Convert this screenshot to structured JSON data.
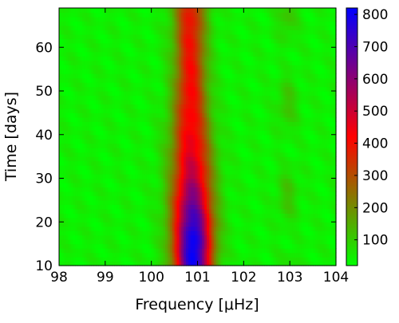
{
  "chart_data": {
    "type": "heatmap",
    "title": "",
    "xlabel": "Frequency [μHz]",
    "ylabel": "Time [days]",
    "xlim": [
      98,
      104
    ],
    "ylim": [
      10,
      69
    ],
    "x_ticks": [
      {
        "value": 98,
        "label": "98"
      },
      {
        "value": 99,
        "label": "99"
      },
      {
        "value": 100,
        "label": "100"
      },
      {
        "value": 101,
        "label": "101"
      },
      {
        "value": 102,
        "label": "102"
      },
      {
        "value": 103,
        "label": "103"
      },
      {
        "value": 104,
        "label": "104"
      }
    ],
    "y_ticks": [
      {
        "value": 10,
        "label": "10"
      },
      {
        "value": 20,
        "label": "20"
      },
      {
        "value": 30,
        "label": "30"
      },
      {
        "value": 40,
        "label": "40"
      },
      {
        "value": 50,
        "label": "50"
      },
      {
        "value": 60,
        "label": "60"
      }
    ],
    "colorbar": {
      "min": 20,
      "max": 820,
      "ticks": [
        {
          "value": 100,
          "label": "100"
        },
        {
          "value": 200,
          "label": "200"
        },
        {
          "value": 300,
          "label": "300"
        },
        {
          "value": 400,
          "label": "400"
        },
        {
          "value": 500,
          "label": "500"
        },
        {
          "value": 600,
          "label": "600"
        },
        {
          "value": 700,
          "label": "700"
        },
        {
          "value": 800,
          "label": "800"
        }
      ],
      "colors": [
        "#00ff00",
        "#ff0000",
        "#0000ff"
      ]
    },
    "ridge": {
      "times": [
        10,
        15,
        20,
        25,
        30,
        35,
        40,
        45,
        50,
        55,
        60,
        65,
        69
      ],
      "center": [
        100.9,
        100.9,
        100.9,
        100.88,
        100.88,
        100.87,
        100.86,
        100.85,
        100.85,
        100.85,
        100.84,
        100.84,
        100.84
      ],
      "peak": [
        780,
        800,
        720,
        620,
        520,
        460,
        420,
        400,
        390,
        380,
        370,
        370,
        360
      ],
      "width": [
        0.28,
        0.29,
        0.3,
        0.3,
        0.3,
        0.3,
        0.29,
        0.27,
        0.25,
        0.24,
        0.24,
        0.24,
        0.24
      ]
    }
  }
}
